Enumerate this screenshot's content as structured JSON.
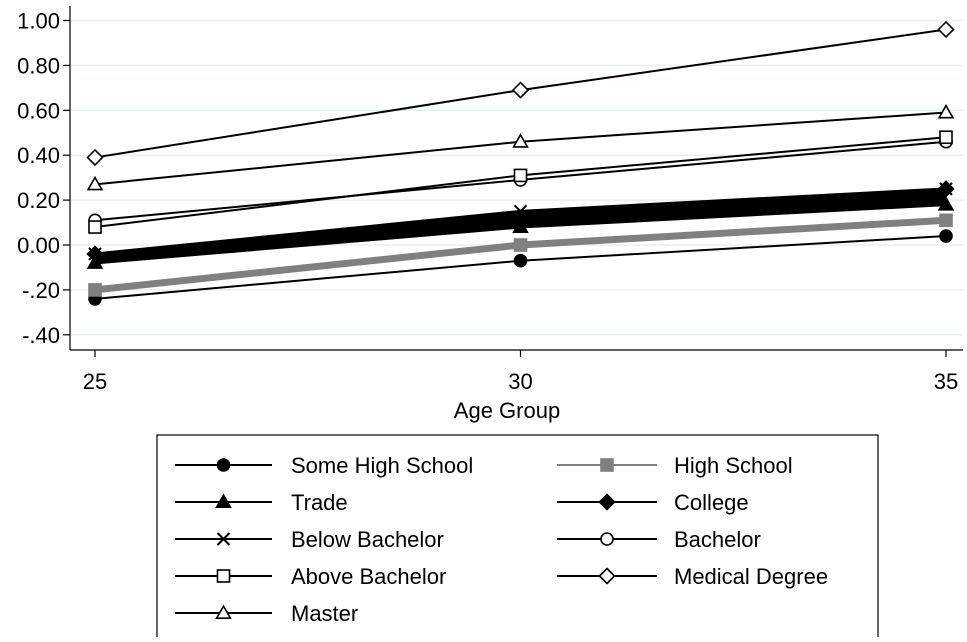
{
  "chart_data": {
    "type": "line",
    "title": "",
    "xlabel": "Age Group",
    "ylabel": "",
    "x": [
      25,
      30,
      35
    ],
    "x_ticks": [
      {
        "value": 25,
        "label": "25"
      },
      {
        "value": 30,
        "label": "30"
      },
      {
        "value": 35,
        "label": "35"
      }
    ],
    "y_ticks": [
      {
        "value": 1.0,
        "label": "1.00"
      },
      {
        "value": 0.8,
        "label": "0.80"
      },
      {
        "value": 0.6,
        "label": "0.60"
      },
      {
        "value": 0.4,
        "label": "0.40"
      },
      {
        "value": 0.2,
        "label": "0.20"
      },
      {
        "value": 0.0,
        "label": "0.00"
      },
      {
        "value": -0.2,
        "label": "-.20"
      },
      {
        "value": -0.4,
        "label": "-.40"
      }
    ],
    "xlim": [
      25,
      35
    ],
    "ylim": [
      -0.4,
      1.0
    ],
    "grid": "horizontal",
    "legend_position": "bottom",
    "series": [
      {
        "name": "Some High School",
        "values": [
          -0.24,
          -0.07,
          0.04
        ],
        "marker": "filled-circle",
        "color": "#000000",
        "width": 2
      },
      {
        "name": "High School",
        "values": [
          -0.2,
          0.0,
          0.11
        ],
        "marker": "filled-square",
        "color": "#808080",
        "width": 2
      },
      {
        "name": "Trade",
        "values": [
          -0.08,
          0.08,
          0.18
        ],
        "marker": "filled-triangle",
        "color": "#000000",
        "width": 2
      },
      {
        "name": "College",
        "values": [
          -0.04,
          0.12,
          0.25
        ],
        "marker": "filled-diamond",
        "color": "#000000",
        "width": 2
      },
      {
        "name": "Below Bachelor",
        "values": [
          -0.04,
          0.15,
          0.25
        ],
        "marker": "x",
        "color": "#000000",
        "width": 2
      },
      {
        "name": "Bachelor",
        "values": [
          0.11,
          0.29,
          0.46
        ],
        "marker": "hollow-circle",
        "color": "#000000",
        "width": 2
      },
      {
        "name": "Above Bachelor",
        "values": [
          0.08,
          0.31,
          0.48
        ],
        "marker": "hollow-square",
        "color": "#000000",
        "width": 2
      },
      {
        "name": "Medical Degree",
        "values": [
          0.39,
          0.69,
          0.96
        ],
        "marker": "hollow-diamond",
        "color": "#000000",
        "width": 2
      },
      {
        "name": "Master",
        "values": [
          0.27,
          0.46,
          0.59
        ],
        "marker": "hollow-triangle",
        "color": "#000000",
        "width": 2
      }
    ],
    "thick_band": {
      "color": "#000000",
      "note": ""
    },
    "grey_band": {
      "color": "#808080"
    }
  },
  "colors": {
    "grid": "#e8eff0",
    "axis": "#000000",
    "frame": "#000000"
  }
}
